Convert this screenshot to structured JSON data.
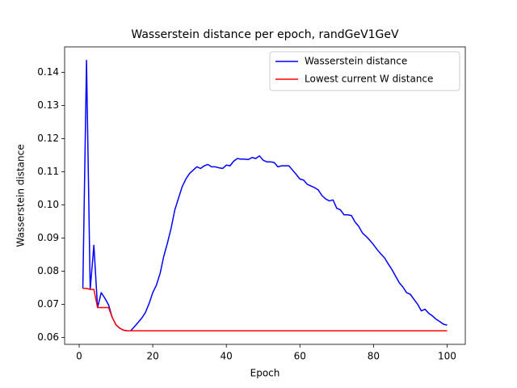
{
  "chart_data": {
    "type": "line",
    "title": "Wasserstein distance per epoch, randGeV1GeV",
    "x_label": "Epoch",
    "y_label": "Wasserstein distance",
    "x": [
      1,
      2,
      3,
      4,
      5,
      6,
      7,
      8,
      9,
      10,
      11,
      12,
      13,
      14,
      15,
      16,
      17,
      18,
      19,
      20,
      21,
      22,
      23,
      24,
      25,
      26,
      27,
      28,
      29,
      30,
      31,
      32,
      33,
      34,
      35,
      36,
      37,
      38,
      39,
      40,
      41,
      42,
      43,
      44,
      45,
      46,
      47,
      48,
      49,
      50,
      51,
      52,
      53,
      54,
      55,
      56,
      57,
      58,
      59,
      60,
      61,
      62,
      63,
      64,
      65,
      66,
      67,
      68,
      69,
      70,
      71,
      72,
      73,
      74,
      75,
      76,
      77,
      78,
      79,
      80,
      81,
      82,
      83,
      84,
      85,
      86,
      87,
      88,
      89,
      90,
      91,
      92,
      93,
      94,
      95,
      96,
      97,
      98,
      99,
      100
    ],
    "series": [
      {
        "name": "Wasserstein distance",
        "color": "#0000ff",
        "values": [
          0.0748,
          0.1436,
          0.0745,
          0.0878,
          0.069,
          0.0735,
          0.0718,
          0.0698,
          0.066,
          0.0638,
          0.0628,
          0.0622,
          0.062,
          0.062,
          0.0632,
          0.0645,
          0.0658,
          0.0675,
          0.0702,
          0.0735,
          0.0758,
          0.0793,
          0.0845,
          0.0885,
          0.093,
          0.0985,
          0.102,
          0.1055,
          0.1078,
          0.1095,
          0.1105,
          0.1115,
          0.111,
          0.1118,
          0.1122,
          0.1115,
          0.1115,
          0.1112,
          0.111,
          0.112,
          0.1118,
          0.1132,
          0.114,
          0.1138,
          0.1138,
          0.1137,
          0.1143,
          0.114,
          0.1148,
          0.1135,
          0.113,
          0.113,
          0.1128,
          0.1115,
          0.1118,
          0.1118,
          0.1118,
          0.1105,
          0.1092,
          0.1078,
          0.1075,
          0.1062,
          0.1057,
          0.1052,
          0.1045,
          0.1028,
          0.1018,
          0.1012,
          0.1015,
          0.099,
          0.0985,
          0.097,
          0.097,
          0.0968,
          0.0948,
          0.0935,
          0.0915,
          0.0905,
          0.0893,
          0.088,
          0.0865,
          0.0852,
          0.084,
          0.0822,
          0.0805,
          0.0785,
          0.0765,
          0.0752,
          0.0735,
          0.073,
          0.0715,
          0.07,
          0.068,
          0.0685,
          0.0673,
          0.0665,
          0.0655,
          0.0648,
          0.064,
          0.0637
        ]
      },
      {
        "name": "Lowest current W distance",
        "color": "#ff0000",
        "values": [
          0.0748,
          0.0748,
          0.0745,
          0.0745,
          0.069,
          0.069,
          0.069,
          0.069,
          0.066,
          0.0638,
          0.0628,
          0.0622,
          0.062,
          0.062,
          0.062,
          0.062,
          0.062,
          0.062,
          0.062,
          0.062,
          0.062,
          0.062,
          0.062,
          0.062,
          0.062,
          0.062,
          0.062,
          0.062,
          0.062,
          0.062,
          0.062,
          0.062,
          0.062,
          0.062,
          0.062,
          0.062,
          0.062,
          0.062,
          0.062,
          0.062,
          0.062,
          0.062,
          0.062,
          0.062,
          0.062,
          0.062,
          0.062,
          0.062,
          0.062,
          0.062,
          0.062,
          0.062,
          0.062,
          0.062,
          0.062,
          0.062,
          0.062,
          0.062,
          0.062,
          0.062,
          0.062,
          0.062,
          0.062,
          0.062,
          0.062,
          0.062,
          0.062,
          0.062,
          0.062,
          0.062,
          0.062,
          0.062,
          0.062,
          0.062,
          0.062,
          0.062,
          0.062,
          0.062,
          0.062,
          0.062,
          0.062,
          0.062,
          0.062,
          0.062,
          0.062,
          0.062,
          0.062,
          0.062,
          0.062,
          0.062,
          0.062,
          0.062,
          0.062,
          0.062,
          0.062,
          0.062,
          0.062,
          0.062,
          0.062,
          0.062
        ]
      }
    ],
    "xlim": [
      -3.95,
      104.95
    ],
    "xticks": [
      0,
      20,
      40,
      60,
      80,
      100
    ],
    "ylim": [
      0.0579,
      0.1477
    ],
    "yticks": [
      0.06,
      0.07,
      0.08,
      0.09,
      {
        "value": 0.1,
        "label": "0.10"
      },
      0.11,
      0.12,
      0.13,
      0.14
    ],
    "legend": "upper right"
  }
}
